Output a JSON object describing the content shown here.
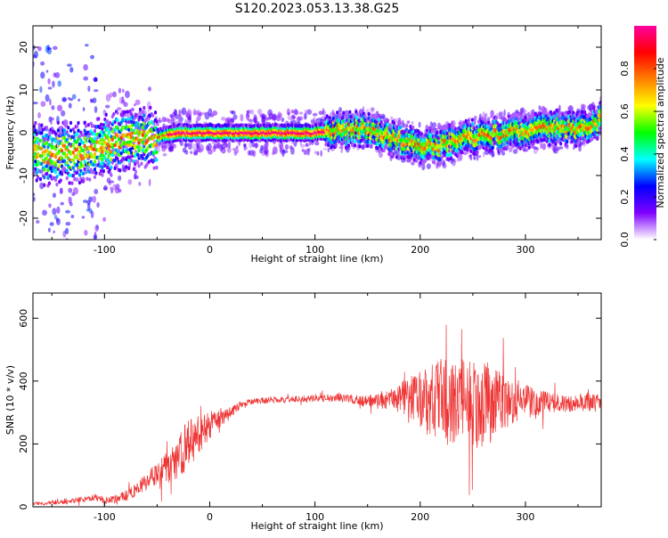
{
  "title": "S120.2023.053.13.38.G25",
  "chart_data": [
    {
      "type": "heatmap",
      "xlabel": "Height of straight line (km)",
      "ylabel": "Frequency (Hz)",
      "xlim": [
        -168,
        372
      ],
      "ylim": [
        -25,
        25
      ],
      "xticks": [
        -100,
        0,
        100,
        200,
        300
      ],
      "yticks": [
        -20,
        -10,
        0,
        10,
        20
      ],
      "grid": false,
      "colorbar": {
        "label": "Normalized spectral amplitude",
        "range": [
          0,
          1
        ],
        "ticks": [
          "0.0",
          "0.2",
          "0.4",
          "0.6",
          "0.8"
        ],
        "colors": [
          "#ffffff",
          "#7f00ff",
          "#0000ff",
          "#00ffff",
          "#00ff00",
          "#ffff00",
          "#ff8000",
          "#ff0000",
          "#ff00a0"
        ]
      },
      "ridge": {
        "description_points": [
          {
            "x": -130,
            "y": -5
          },
          {
            "x": -100,
            "y": -3
          },
          {
            "x": -70,
            "y": -1
          },
          {
            "x": -50,
            "y": -1
          },
          {
            "x": -30,
            "y": 0
          },
          {
            "x": 0,
            "y": 0
          },
          {
            "x": 50,
            "y": 0
          },
          {
            "x": 100,
            "y": 0
          },
          {
            "x": 120,
            "y": 0.5
          },
          {
            "x": 150,
            "y": 1
          },
          {
            "x": 170,
            "y": -1
          },
          {
            "x": 200,
            "y": -3
          },
          {
            "x": 220,
            "y": -3
          },
          {
            "x": 250,
            "y": -1
          },
          {
            "x": 280,
            "y": 0
          },
          {
            "x": 320,
            "y": 1
          },
          {
            "x": 350,
            "y": 1
          },
          {
            "x": 372,
            "y": 3
          }
        ]
      }
    },
    {
      "type": "line",
      "xlabel": "Height of straight line (km)",
      "ylabel": "SNR (10 * v/v)",
      "xlim": [
        -168,
        372
      ],
      "ylim": [
        0,
        680
      ],
      "xticks": [
        -100,
        0,
        100,
        200,
        300
      ],
      "yticks": [
        0,
        200,
        400,
        600
      ],
      "grid": false,
      "series": [
        {
          "color": "#ee3333",
          "x": [
            -168,
            -150,
            -130,
            -110,
            -100,
            -90,
            -80,
            -70,
            -60,
            -50,
            -40,
            -30,
            -20,
            -10,
            0,
            10,
            20,
            30,
            40,
            50,
            60,
            70,
            80,
            90,
            100,
            110,
            120,
            130,
            140,
            150,
            160,
            170,
            180,
            190,
            200,
            210,
            220,
            230,
            240,
            250,
            260,
            270,
            280,
            290,
            300,
            310,
            320,
            330,
            340,
            350,
            360,
            372
          ],
          "values": [
            10,
            12,
            18,
            30,
            20,
            25,
            35,
            55,
            80,
            110,
            120,
            160,
            200,
            230,
            260,
            280,
            300,
            325,
            335,
            338,
            340,
            340,
            342,
            343,
            345,
            346,
            348,
            345,
            340,
            338,
            335,
            340,
            345,
            350,
            345,
            330,
            335,
            325,
            340,
            320,
            330,
            330,
            335,
            330,
            340,
            325,
            335,
            330,
            325,
            330,
            335,
            330
          ],
          "noise_amplitude": [
            5,
            6,
            8,
            10,
            12,
            14,
            18,
            22,
            30,
            40,
            55,
            70,
            80,
            60,
            45,
            25,
            18,
            12,
            10,
            10,
            10,
            10,
            10,
            10,
            12,
            12,
            14,
            14,
            16,
            20,
            24,
            30,
            45,
            70,
            95,
            120,
            140,
            130,
            140,
            150,
            140,
            120,
            90,
            60,
            55,
            45,
            35,
            30,
            28,
            28,
            30,
            30
          ]
        }
      ]
    }
  ]
}
